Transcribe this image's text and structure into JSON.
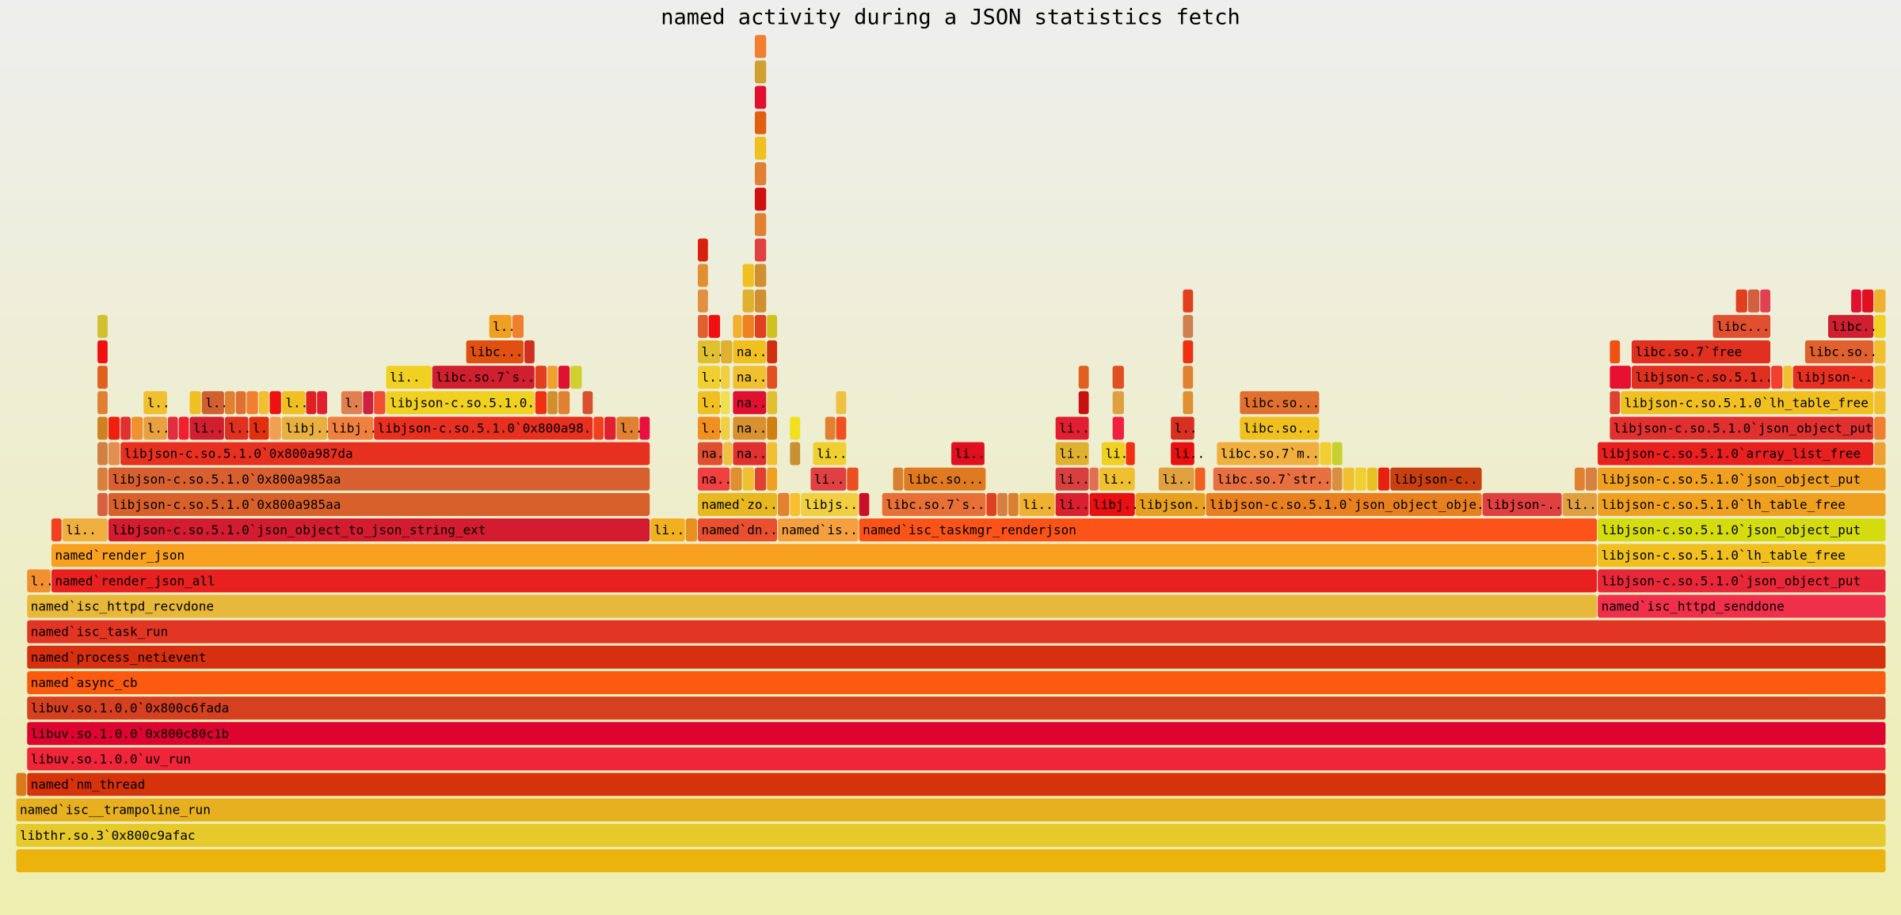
{
  "chart_data": {
    "type": "flame",
    "title": "named activity during a JSON statistics fetch",
    "xlim": [
      0,
      1542
    ],
    "levels": [
      [
        [
          0,
          1542,
          "#ebb30b"
        ]
      ],
      [
        [
          0,
          1542,
          "#e6c92b",
          "libthr.so.3`0x800c9afac"
        ]
      ],
      [
        [
          0,
          1542,
          "#e6b020",
          "named`isc__trampoline_run"
        ]
      ],
      [
        [
          0,
          9,
          "#d97b1a"
        ],
        [
          9,
          1533,
          "#d6320c",
          "named`nm_thread"
        ]
      ],
      [
        [
          9,
          1533,
          "#f0253a",
          "libuv.so.1.0.0`uv_run"
        ]
      ],
      [
        [
          9,
          1533,
          "#dd0530",
          "libuv.so.1.0.0`0x800c80c1b"
        ]
      ],
      [
        [
          9,
          1533,
          "#d44020",
          "libuv.so.1.0.0`0x800c6fada"
        ]
      ],
      [
        [
          9,
          1533,
          "#fb5a10",
          "named`async_cb"
        ]
      ],
      [
        [
          9,
          1533,
          "#d63010",
          "named`process_netievent"
        ]
      ],
      [
        [
          9,
          1533,
          "#e33524",
          "named`isc_task_run"
        ]
      ],
      [
        [
          9,
          1295,
          "#e8b83a",
          "named`isc_httpd_recvdone"
        ],
        [
          1304,
          238,
          "#f0304a",
          "named`isc_httpd_senddone"
        ]
      ],
      [
        [
          9,
          20,
          "#f09030",
          "l.."
        ],
        [
          29,
          1275,
          "#e82020",
          "named`render_json_all"
        ],
        [
          1304,
          238,
          "#e82838",
          "libjson-c.so.5.1.0`json_object_put"
        ]
      ],
      [
        [
          29,
          1275,
          "#f8a020",
          "named`render_json"
        ],
        [
          1304,
          238,
          "#f0c020",
          "libjson-c.so.5.1.0`lh_table_free"
        ]
      ],
      [
        [
          29,
          9,
          "#f04020"
        ],
        [
          38,
          38,
          "#f0b040",
          "li.."
        ],
        [
          76,
          447,
          "#d41c30",
          "libjson-c.so.5.1.0`json_object_to_json_string_ext"
        ],
        [
          523,
          29,
          "#f0b020",
          "li.."
        ],
        [
          552,
          10,
          "#e89020"
        ],
        [
          562,
          66,
          "#e85030",
          "named`dn.."
        ],
        [
          628,
          67,
          "#f4a040",
          "named`is.."
        ],
        [
          695,
          609,
          "#fc5418",
          "named`isc_taskmgr_renderjson"
        ],
        [
          1304,
          238,
          "#d4dc10",
          "libjson-c.so.5.1.0`json_object_put"
        ]
      ],
      [
        [
          67,
          9,
          "#d86040"
        ],
        [
          76,
          447,
          "#d8602a",
          "libjson-c.so.5.1.0`0x800a985aa"
        ],
        [
          562,
          66,
          "#e8b820",
          "named`zo.."
        ],
        [
          628,
          10,
          "#e48030"
        ],
        [
          638,
          9,
          "#f8c030"
        ],
        [
          647,
          48,
          "#f0d040",
          "libjs.."
        ],
        [
          695,
          9,
          "#c8102a"
        ],
        [
          714,
          86,
          "#e87038",
          "libc.so.7`s.."
        ],
        [
          800,
          9,
          "#e04020"
        ],
        [
          809,
          9,
          "#d88040"
        ],
        [
          818,
          9,
          "#d88030"
        ],
        [
          827,
          30,
          "#f0b030",
          "li.."
        ],
        [
          857,
          28,
          "#d82030",
          "li.."
        ],
        [
          885,
          38,
          "#e81010",
          "libj.."
        ],
        [
          923,
          58,
          "#e8a020",
          "libjson.."
        ],
        [
          981,
          228,
          "#e88020",
          "libjson-c.so.5.1.0`json_object_obje.."
        ],
        [
          1209,
          66,
          "#e04040",
          "libjson-.."
        ],
        [
          1275,
          29,
          "#e0a040",
          "li.."
        ],
        [
          1304,
          238,
          "#f0a020",
          "libjson-c.so.5.1.0`lh_table_free"
        ]
      ],
      [
        [
          67,
          9,
          "#d88040"
        ],
        [
          76,
          447,
          "#d86030",
          "libjson-c.so.5.1.0`0x800a985aa"
        ],
        [
          562,
          27,
          "#f04040",
          "na.."
        ],
        [
          589,
          10,
          "#e09030"
        ],
        [
          599,
          10,
          "#f0c030"
        ],
        [
          609,
          10,
          "#e04030"
        ],
        [
          619,
          9,
          "#f0a020"
        ],
        [
          655,
          30,
          "#e04040",
          "li.."
        ],
        [
          685,
          10,
          "#e85020"
        ],
        [
          723,
          9,
          "#d88030"
        ],
        [
          732,
          68,
          "#e07a20",
          "libc.so..."
        ],
        [
          857,
          28,
          "#d84040",
          "li.."
        ],
        [
          885,
          8,
          "#e07050"
        ],
        [
          893,
          30,
          "#f0c030",
          "li.."
        ],
        [
          942,
          30,
          "#e0a040",
          "li.."
        ],
        [
          972,
          9,
          "#f06020"
        ],
        [
          987,
          98,
          "#e87040",
          "libc.so.7`str.."
        ],
        [
          1085,
          9,
          "#d89040"
        ],
        [
          1094,
          10,
          "#f0c030"
        ],
        [
          1104,
          10,
          "#f0d030"
        ],
        [
          1114,
          9,
          "#e8c020"
        ],
        [
          1123,
          10,
          "#e82010"
        ],
        [
          1133,
          76,
          "#c84010",
          "libjson-c.."
        ],
        [
          1285,
          9,
          "#e08030"
        ],
        [
          1294,
          10,
          "#d88040"
        ],
        [
          1304,
          238,
          "#f0a020",
          "libjson-c.so.5.1.0`json_object_put"
        ]
      ],
      [
        [
          67,
          9,
          "#d08040"
        ],
        [
          76,
          10,
          "#e09050"
        ],
        [
          86,
          437,
          "#e83020",
          "libjson-c.so.5.1.0`0x800a987da"
        ],
        [
          562,
          21,
          "#e05030",
          "na.."
        ],
        [
          583,
          8,
          "#f0c040"
        ],
        [
          591,
          28,
          "#e03030",
          "na.."
        ],
        [
          619,
          9,
          "#f0c030"
        ],
        [
          638,
          9,
          "#c89030"
        ],
        [
          657,
          28,
          "#f0d030",
          "li.."
        ],
        [
          771,
          28,
          "#e01020",
          "li.."
        ],
        [
          857,
          28,
          "#e0b030",
          "li.."
        ],
        [
          895,
          20,
          "#f0d020",
          "li.."
        ],
        [
          915,
          8,
          "#f03010"
        ],
        [
          952,
          20,
          "#e81010",
          "li.."
        ],
        [
          990,
          85,
          "#f0b040",
          "libc.so.7`m.."
        ],
        [
          1075,
          10,
          "#f0d030"
        ],
        [
          1085,
          9,
          "#c8d030"
        ],
        [
          1304,
          228,
          "#e82020",
          "libjson-c.so.5.1.0`array_list_free"
        ],
        [
          1532,
          10,
          "#f0a030"
        ]
      ],
      [
        [
          67,
          9,
          "#d08020"
        ],
        [
          76,
          10,
          "#f02010"
        ],
        [
          86,
          9,
          "#e03030"
        ],
        [
          95,
          10,
          "#f09030"
        ],
        [
          105,
          20,
          "#e8a040",
          "l.."
        ],
        [
          125,
          9,
          "#e03040"
        ],
        [
          134,
          9,
          "#f02030"
        ],
        [
          143,
          29,
          "#d02030",
          "li.."
        ],
        [
          172,
          20,
          "#e03020",
          "l.."
        ],
        [
          192,
          17,
          "#e03010",
          "l.."
        ],
        [
          209,
          10,
          "#f0a050"
        ],
        [
          219,
          38,
          "#e8b040",
          "libj.."
        ],
        [
          257,
          38,
          "#f08040",
          "libj.."
        ],
        [
          295,
          181,
          "#e83020",
          "libjson-c.so.5.1.0`0x800a98.."
        ],
        [
          476,
          9,
          "#f04020"
        ],
        [
          485,
          10,
          "#e02030"
        ],
        [
          495,
          19,
          "#e08030",
          "l.."
        ],
        [
          514,
          9,
          "#e81040"
        ],
        [
          562,
          19,
          "#f09020",
          "l.."
        ],
        [
          581,
          8,
          "#f0d040"
        ],
        [
          591,
          28,
          "#d89030",
          "na.."
        ],
        [
          619,
          9,
          "#d08010"
        ],
        [
          638,
          9,
          "#f0e020"
        ],
        [
          667,
          9,
          "#e08030"
        ],
        [
          676,
          9,
          "#f05020"
        ],
        [
          857,
          28,
          "#e02030",
          "li.."
        ],
        [
          904,
          10,
          "#f02040"
        ],
        [
          952,
          20,
          "#d83020",
          "l.."
        ],
        [
          1009,
          66,
          "#f0c020",
          "libc.so..."
        ],
        [
          1314,
          218,
          "#e03030",
          "libjson-c.so.5.1.0`json_object_put"
        ],
        [
          1532,
          10,
          "#f08030"
        ]
      ],
      [
        [
          67,
          9,
          "#e08030"
        ],
        [
          105,
          20,
          "#f0c030",
          "l.."
        ],
        [
          143,
          10,
          "#f0c020"
        ],
        [
          153,
          19,
          "#d06030",
          "l.."
        ],
        [
          172,
          9,
          "#e08030"
        ],
        [
          181,
          9,
          "#e07030"
        ],
        [
          190,
          10,
          "#f08030"
        ],
        [
          200,
          9,
          "#f0c030"
        ],
        [
          209,
          10,
          "#f01010"
        ],
        [
          219,
          20,
          "#f0c020",
          "l.."
        ],
        [
          239,
          9,
          "#e02020"
        ],
        [
          248,
          9,
          "#e02030"
        ],
        [
          268,
          18,
          "#e08050",
          "l.."
        ],
        [
          286,
          9,
          "#d02040"
        ],
        [
          295,
          10,
          "#f05030"
        ],
        [
          305,
          123,
          "#f0d020",
          "libjson-c.so.5.1.0.."
        ],
        [
          428,
          10,
          "#f03010"
        ],
        [
          438,
          9,
          "#d09030"
        ],
        [
          447,
          10,
          "#e08030"
        ],
        [
          467,
          9,
          "#d85030"
        ],
        [
          562,
          19,
          "#f0c020",
          "l.."
        ],
        [
          581,
          8,
          "#f0e050"
        ],
        [
          591,
          28,
          "#e01030",
          "na.."
        ],
        [
          619,
          9,
          "#e0c030"
        ],
        [
          676,
          9,
          "#f0c040"
        ],
        [
          876,
          9,
          "#c81010"
        ],
        [
          904,
          10,
          "#e0a040"
        ],
        [
          962,
          9,
          "#e09030"
        ],
        [
          1009,
          66,
          "#e07030",
          "libc.so..."
        ],
        [
          1314,
          9,
          "#e04030"
        ],
        [
          1323,
          209,
          "#f0c020",
          "libjson-c.so.5.1.0`lh_table_free"
        ],
        [
          1532,
          10,
          "#f0c030"
        ]
      ],
      [
        [
          67,
          9,
          "#e06020"
        ],
        [
          305,
          38,
          "#f0d020",
          "li.."
        ],
        [
          343,
          85,
          "#d02030",
          "libc.so.7`s.."
        ],
        [
          428,
          10,
          "#e04020"
        ],
        [
          438,
          9,
          "#f0a030"
        ],
        [
          447,
          10,
          "#e01030"
        ],
        [
          457,
          10,
          "#d0d030"
        ],
        [
          562,
          19,
          "#f0d030",
          "l.."
        ],
        [
          581,
          8,
          "#f0d040"
        ],
        [
          591,
          28,
          "#f0c030",
          "na.."
        ],
        [
          619,
          9,
          "#e05020"
        ],
        [
          876,
          9,
          "#e06020"
        ],
        [
          904,
          10,
          "#e05020"
        ],
        [
          962,
          9,
          "#e08030"
        ],
        [
          1314,
          18,
          "#e81030"
        ],
        [
          1332,
          115,
          "#e03020",
          "libjson-c.so.5.1.."
        ],
        [
          1447,
          10,
          "#f04030"
        ],
        [
          1457,
          8,
          "#f0c030"
        ],
        [
          1465,
          67,
          "#e83020",
          "libjson-.."
        ],
        [
          1532,
          10,
          "#f0c030"
        ]
      ],
      [
        [
          67,
          9,
          "#f01010"
        ],
        [
          371,
          48,
          "#e05010",
          "libc..."
        ],
        [
          419,
          9,
          "#d03020"
        ],
        [
          562,
          19,
          "#e0c030",
          "l.."
        ],
        [
          581,
          10,
          "#e0b030"
        ],
        [
          591,
          28,
          "#f0c020",
          "na.."
        ],
        [
          619,
          9,
          "#d03010"
        ],
        [
          962,
          9,
          "#f03010"
        ],
        [
          1314,
          9,
          "#f05010"
        ],
        [
          1332,
          115,
          "#e03020",
          "libc.so.7`free"
        ],
        [
          1475,
          57,
          "#e06030",
          "libc.so..."
        ],
        [
          1532,
          10,
          "#f0c030"
        ]
      ],
      [
        [
          67,
          9,
          "#d0c030"
        ],
        [
          390,
          19,
          "#f0a020",
          "l.."
        ],
        [
          409,
          10,
          "#f08030"
        ],
        [
          562,
          9,
          "#e06030"
        ],
        [
          571,
          10,
          "#f01010"
        ],
        [
          591,
          8,
          "#f0b030"
        ],
        [
          599,
          10,
          "#f08020"
        ],
        [
          609,
          10,
          "#e04020"
        ],
        [
          619,
          9,
          "#d0c020"
        ],
        [
          962,
          9,
          "#d08050"
        ],
        [
          1399,
          48,
          "#e05030",
          "libc..."
        ],
        [
          1494,
          38,
          "#d02030",
          "libc..."
        ],
        [
          1532,
          10,
          "#f0d020"
        ]
      ],
      [
        [
          562,
          9,
          "#e09040"
        ],
        [
          599,
          10,
          "#e0b030"
        ],
        [
          609,
          10,
          "#d09030"
        ],
        [
          962,
          9,
          "#e04020"
        ],
        [
          1418,
          10,
          "#e04020"
        ],
        [
          1428,
          10,
          "#d06040"
        ],
        [
          1438,
          9,
          "#e04050"
        ],
        [
          1513,
          9,
          "#e01030"
        ],
        [
          1522,
          10,
          "#e01020"
        ],
        [
          1532,
          10,
          "#f0b030"
        ]
      ],
      [
        [
          562,
          9,
          "#e09030"
        ],
        [
          599,
          10,
          "#f0c020"
        ],
        [
          609,
          10,
          "#d09030"
        ]
      ],
      [
        [
          562,
          9,
          "#d82010"
        ],
        [
          609,
          10,
          "#e04040"
        ]
      ],
      [
        [
          609,
          10,
          "#e08030"
        ]
      ],
      [
        [
          609,
          10,
          "#d01010"
        ]
      ],
      [
        [
          609,
          10,
          "#e08030"
        ]
      ],
      [
        [
          609,
          10,
          "#f0c020"
        ]
      ],
      [
        [
          609,
          10,
          "#e06010"
        ]
      ],
      [
        [
          609,
          10,
          "#e01030"
        ]
      ],
      [
        [
          609,
          10,
          "#d0a030"
        ]
      ],
      [
        [
          609,
          10,
          "#f08030"
        ]
      ]
    ]
  }
}
